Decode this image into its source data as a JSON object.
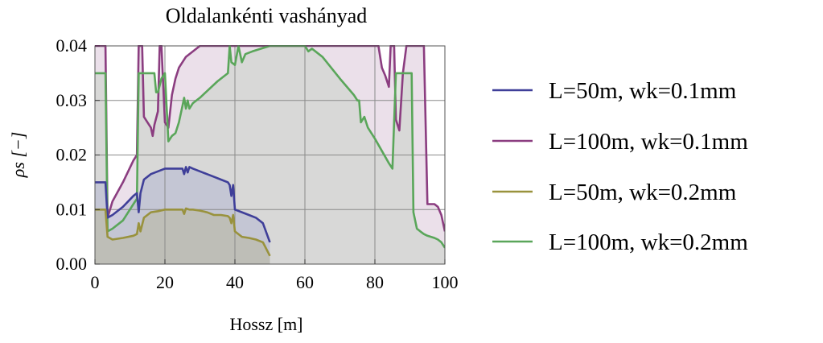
{
  "chart_data": {
    "type": "area",
    "title": "Oldalankénti vashányad",
    "xlabel": "Hossz [m]",
    "ylabel": "ρs [−]",
    "xlim": [
      0,
      100
    ],
    "ylim": [
      0,
      0.04
    ],
    "x_ticks": [
      0,
      20,
      40,
      60,
      80,
      100
    ],
    "y_ticks": [
      0.0,
      0.01,
      0.02,
      0.03,
      0.04
    ],
    "x_tick_labels": [
      "0",
      "20",
      "40",
      "60",
      "80",
      "100"
    ],
    "y_tick_labels": [
      "0.00",
      "0.01",
      "0.02",
      "0.03",
      "0.04"
    ],
    "grid": true,
    "legend_position": "right",
    "series": [
      {
        "name": "L=100m, wk=0.1mm",
        "color": "#8b3d80",
        "fill": "#dbc6d8",
        "x": [
          0,
          0.5,
          3,
          3.6,
          5,
          8,
          11,
          12,
          12.5,
          13,
          13.5,
          14,
          15,
          16,
          16.5,
          17,
          18,
          18.5,
          19,
          20,
          21,
          22,
          23,
          24,
          26,
          30,
          35,
          40,
          45,
          50,
          55,
          60,
          65,
          70,
          72,
          73,
          75,
          77,
          78,
          80,
          81,
          82,
          83,
          84,
          84.5,
          85,
          85.5,
          86,
          87,
          88,
          89,
          90,
          91,
          92,
          93,
          94,
          95,
          96,
          97,
          98,
          99,
          100
        ],
        "values": [
          0.04,
          0.04,
          0.04,
          0.0085,
          0.0115,
          0.015,
          0.019,
          0.02,
          0.04,
          0.04,
          0.04,
          0.027,
          0.026,
          0.025,
          0.0235,
          0.0255,
          0.028,
          0.04,
          0.04,
          0.026,
          0.025,
          0.031,
          0.034,
          0.036,
          0.038,
          0.04,
          0.04,
          0.04,
          0.04,
          0.04,
          0.04,
          0.04,
          0.04,
          0.04,
          0.04,
          0.04,
          0.04,
          0.04,
          0.04,
          0.04,
          0.04,
          0.036,
          0.0345,
          0.0325,
          0.04,
          0.04,
          0.04,
          0.0265,
          0.0245,
          0.035,
          0.04,
          0.04,
          0.04,
          0.04,
          0.04,
          0.04,
          0.011,
          0.011,
          0.011,
          0.0105,
          0.009,
          0.006
        ]
      },
      {
        "name": "L=100m, wk=0.2mm",
        "color": "#5aa65a",
        "fill": "#c9d2c6",
        "x": [
          0,
          0.5,
          3,
          3.6,
          5,
          8,
          11,
          12,
          12.5,
          13,
          13.5,
          14,
          16,
          17,
          17.5,
          18,
          19,
          20,
          21,
          22,
          23,
          24,
          25,
          25.5,
          26,
          26.5,
          27,
          28,
          30,
          35,
          38,
          38.5,
          39,
          40,
          41,
          42,
          43,
          45,
          50,
          55,
          60,
          61,
          62,
          63,
          64,
          65,
          70,
          74,
          75,
          75.5,
          76,
          77,
          78,
          80,
          84,
          85,
          86,
          88,
          89,
          90,
          90.5,
          91,
          92,
          93,
          94,
          95,
          96,
          97,
          98,
          99,
          100
        ],
        "values": [
          0.035,
          0.035,
          0.035,
          0.006,
          0.0065,
          0.008,
          0.011,
          0.012,
          0.035,
          0.035,
          0.035,
          0.035,
          0.035,
          0.035,
          0.0315,
          0.0315,
          0.034,
          0.035,
          0.0225,
          0.0235,
          0.024,
          0.026,
          0.029,
          0.0305,
          0.0285,
          0.03,
          0.0285,
          0.0295,
          0.0305,
          0.0335,
          0.035,
          0.04,
          0.037,
          0.0365,
          0.04,
          0.037,
          0.0385,
          0.039,
          0.04,
          0.04,
          0.04,
          0.039,
          0.0395,
          0.039,
          0.0385,
          0.038,
          0.034,
          0.031,
          0.03,
          0.03,
          0.026,
          0.027,
          0.025,
          0.023,
          0.0185,
          0.0175,
          0.035,
          0.035,
          0.035,
          0.035,
          0.035,
          0.0095,
          0.0065,
          0.006,
          0.0055,
          0.0052,
          0.005,
          0.0048,
          0.0045,
          0.004,
          0.003
        ]
      },
      {
        "name": "L=50m, wk=0.1mm",
        "color": "#3f3f99",
        "fill": "#b5b8d2",
        "x": [
          0,
          0.5,
          3,
          3.6,
          5,
          8,
          11,
          12,
          12.5,
          13,
          14,
          16,
          18,
          20,
          22,
          24,
          25,
          25.5,
          26,
          26.5,
          27,
          28,
          30,
          32,
          34,
          36,
          38,
          38.5,
          39,
          39.5,
          40,
          42,
          44,
          46,
          48,
          50
        ],
        "values": [
          0.015,
          0.015,
          0.015,
          0.0085,
          0.009,
          0.0105,
          0.0125,
          0.013,
          0.0095,
          0.013,
          0.0155,
          0.0165,
          0.017,
          0.0175,
          0.0175,
          0.0175,
          0.0175,
          0.0165,
          0.0178,
          0.0168,
          0.0178,
          0.0175,
          0.017,
          0.0165,
          0.016,
          0.0155,
          0.015,
          0.0145,
          0.0125,
          0.0145,
          0.01,
          0.0095,
          0.009,
          0.0085,
          0.0075,
          0.004
        ]
      },
      {
        "name": "L=50m, wk=0.2mm",
        "color": "#99923d",
        "fill": "#b9b89f",
        "x": [
          0,
          0.5,
          3,
          3.6,
          5,
          8,
          11,
          12,
          12.5,
          13,
          14,
          16,
          18,
          20,
          22,
          24,
          25,
          25.5,
          26,
          27,
          28,
          30,
          32,
          34,
          36,
          38,
          38.5,
          39,
          39.5,
          40,
          42,
          44,
          46,
          48,
          50
        ],
        "values": [
          0.01,
          0.01,
          0.01,
          0.005,
          0.0045,
          0.0048,
          0.0052,
          0.0055,
          0.0075,
          0.006,
          0.0085,
          0.0095,
          0.0097,
          0.01,
          0.01,
          0.01,
          0.01,
          0.0092,
          0.0102,
          0.01,
          0.01,
          0.0098,
          0.0095,
          0.009,
          0.009,
          0.0088,
          0.0085,
          0.0075,
          0.009,
          0.006,
          0.005,
          0.0048,
          0.0045,
          0.004,
          0.0015
        ]
      }
    ],
    "legend_order": [
      {
        "name": "L=50m, wk=0.1mm",
        "color": "#3f3f99"
      },
      {
        "name": "L=100m, wk=0.1mm",
        "color": "#8b3d80"
      },
      {
        "name": "L=50m, wk=0.2mm",
        "color": "#99923d"
      },
      {
        "name": "L=100m, wk=0.2mm",
        "color": "#5aa65a"
      }
    ]
  }
}
